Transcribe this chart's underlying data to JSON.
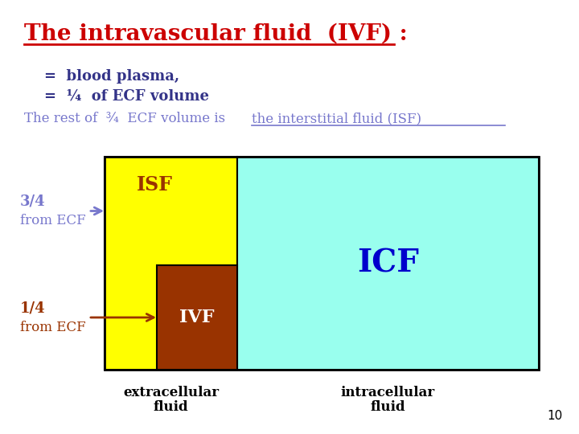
{
  "title": "The intravascular fluid  (IVF) :",
  "title_color": "#cc0000",
  "title_fontsize": 20,
  "line1": "=  blood plasma,",
  "line2": "=  ¼  of ECF volume",
  "line3_part1": "The rest of  ¾  ECF volume is ",
  "line3_part2": "the interstitial fluid (ISF)",
  "text_color_purple": "#7777cc",
  "text_color_dark_blue": "#333388",
  "background_color": "#ffffff",
  "yellow_color": "#ffff00",
  "dark_red_color": "#993300",
  "cyan_color": "#99ffee",
  "label_34_text": "3/4",
  "label_34_sub": "from ECF",
  "label_14_text": "1/4",
  "label_14_sub": "from ECF",
  "isf_label": "ISF",
  "ivf_label": "IVF",
  "icf_label": "ICF",
  "extracellular_label": "extracellular\nfluid",
  "intracellular_label": "intracellular\nfluid",
  "page_number": "10"
}
